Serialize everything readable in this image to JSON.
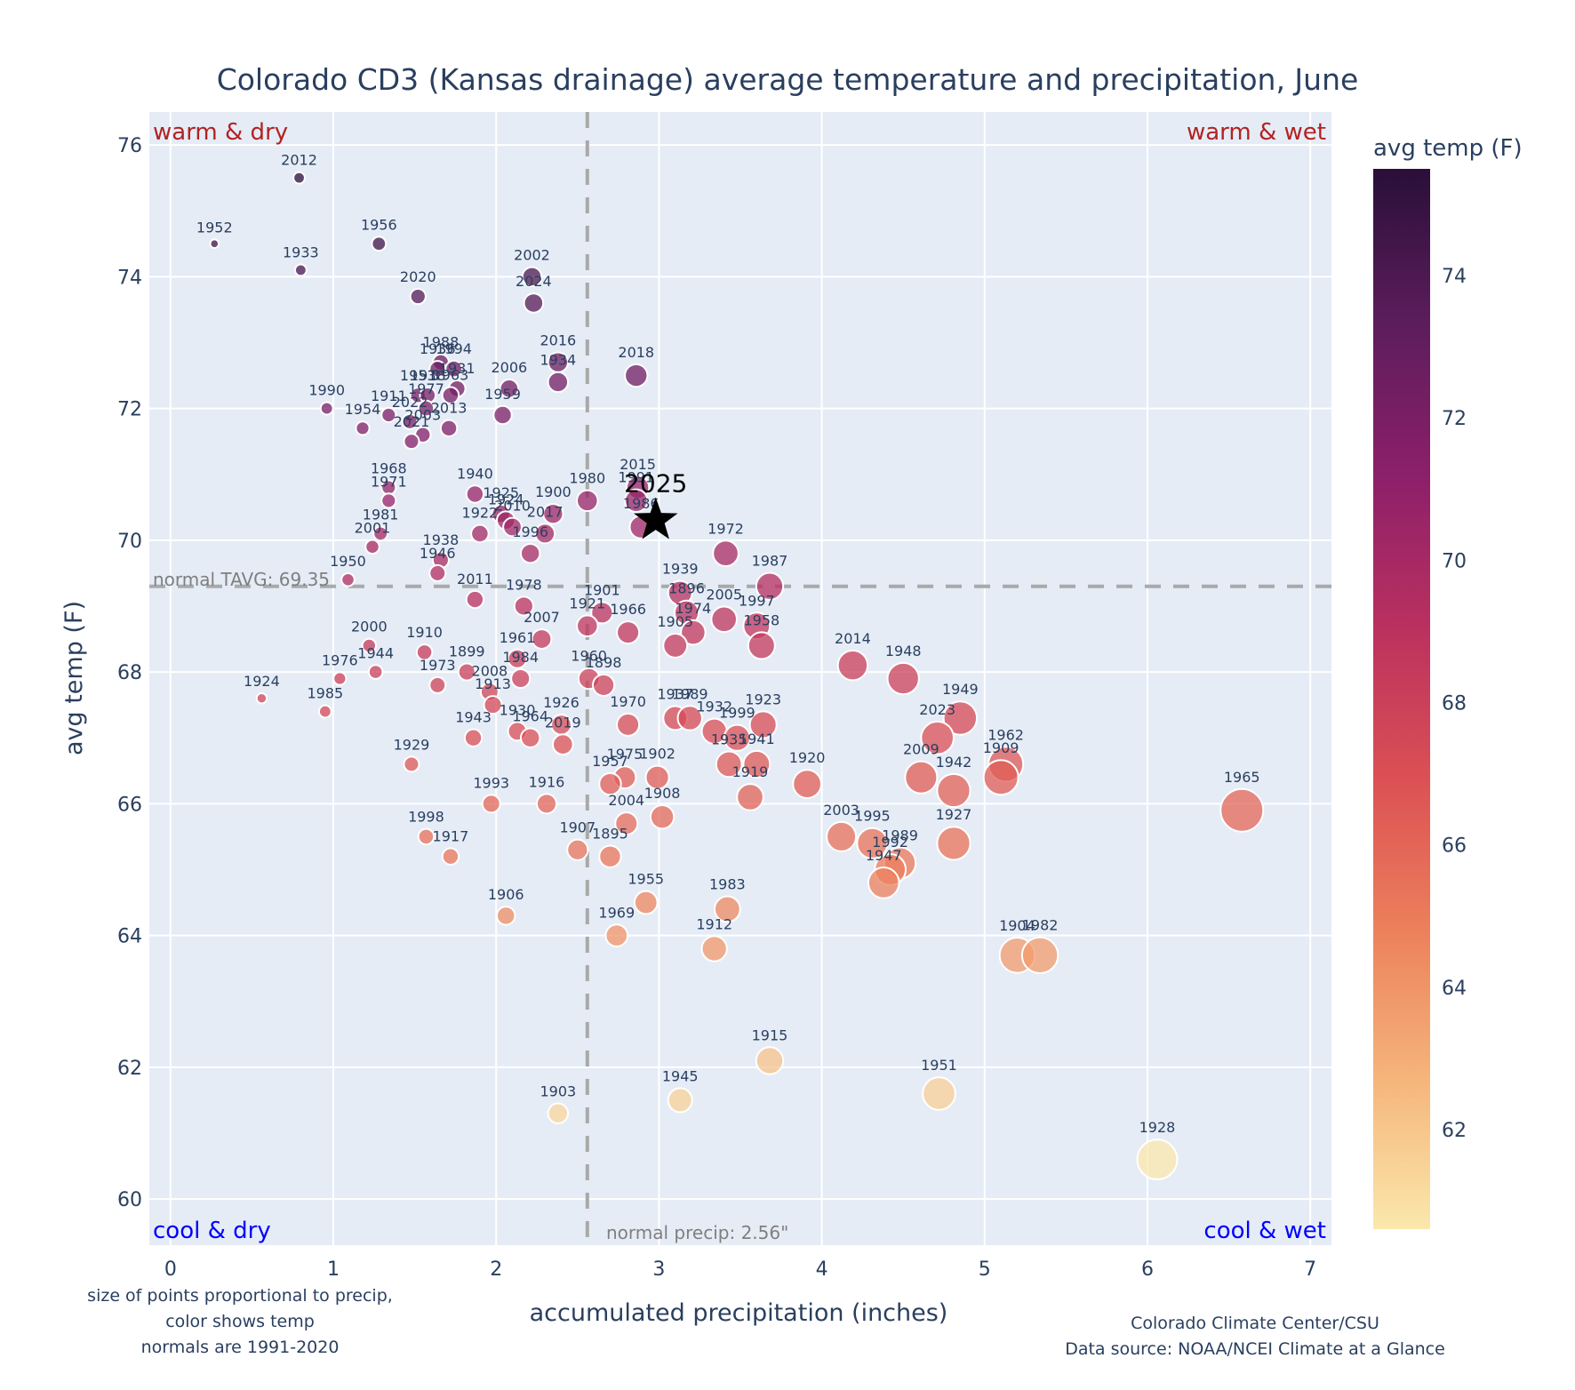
{
  "chart_data": {
    "type": "scatter",
    "title": "Colorado CD3 (Kansas drainage) average temperature and precipitation, June",
    "xlabel": "accumulated precipitation (inches)",
    "ylabel": "avg temp (F)",
    "xlim": [
      -0.13,
      7.13
    ],
    "ylim": [
      59.3,
      76.5
    ],
    "xticks": [
      0,
      1,
      2,
      3,
      4,
      5,
      6,
      7
    ],
    "yticks": [
      60,
      62,
      64,
      66,
      68,
      70,
      72,
      74,
      76
    ],
    "grid": true,
    "colorbar": {
      "title": "avg temp (F)",
      "range": [
        60.6,
        75.5
      ],
      "ticks": [
        62,
        64,
        66,
        68,
        70,
        72,
        74
      ],
      "colorscale": [
        "#fbe8ac",
        "#f5b47a",
        "#ec7f5b",
        "#db4f54",
        "#b9305f",
        "#8b1f6a",
        "#5b1d5c",
        "#2a0f38"
      ]
    },
    "reference_lines": {
      "normal_precip": 2.56,
      "normal_precip_label": "normal precip: 2.56\"",
      "normal_tavg": 69.3,
      "normal_tavg_label": "normal TAVG: 69.35"
    },
    "quadrant_labels": {
      "top_left": "warm & dry",
      "top_right": "warm & wet",
      "bottom_left": "cool & dry",
      "bottom_right": "cool & wet",
      "warm_color": "#b22222",
      "cool_color": "#0000ff"
    },
    "highlight": {
      "label": "2025",
      "x": 2.98,
      "y": 70.3,
      "marker": "star"
    },
    "size_note": [
      "size of points proportional to precip,",
      "color shows temp",
      "normals are 1991-2020"
    ],
    "credit": [
      "Colorado Climate Center/CSU",
      "Data source: NOAA/NCEI Climate at a Glance"
    ],
    "points": [
      {
        "year": "2012",
        "x": 0.79,
        "y": 75.5
      },
      {
        "year": "1952",
        "x": 0.27,
        "y": 74.5
      },
      {
        "year": "1956",
        "x": 1.28,
        "y": 74.5
      },
      {
        "year": "1933",
        "x": 0.8,
        "y": 74.1
      },
      {
        "year": "2002",
        "x": 2.22,
        "y": 74.0
      },
      {
        "year": "2024",
        "x": 2.23,
        "y": 73.6
      },
      {
        "year": "2020",
        "x": 1.52,
        "y": 73.7
      },
      {
        "year": "1988",
        "x": 1.66,
        "y": 72.7
      },
      {
        "year": "1994",
        "x": 1.74,
        "y": 72.6
      },
      {
        "year": "1936",
        "x": 1.64,
        "y": 72.6
      },
      {
        "year": "1931",
        "x": 1.76,
        "y": 72.3
      },
      {
        "year": "1953",
        "x": 1.52,
        "y": 72.2
      },
      {
        "year": "1918",
        "x": 1.58,
        "y": 72.2
      },
      {
        "year": "2016",
        "x": 2.38,
        "y": 72.7
      },
      {
        "year": "1934",
        "x": 2.38,
        "y": 72.4
      },
      {
        "year": "2006",
        "x": 2.08,
        "y": 72.3
      },
      {
        "year": "2018",
        "x": 2.86,
        "y": 72.5
      },
      {
        "year": "1990",
        "x": 0.96,
        "y": 72.0
      },
      {
        "year": "1911",
        "x": 1.34,
        "y": 71.9
      },
      {
        "year": "1977",
        "x": 1.57,
        "y": 72.0
      },
      {
        "year": "1963",
        "x": 1.72,
        "y": 72.2
      },
      {
        "year": "1959",
        "x": 2.04,
        "y": 71.9
      },
      {
        "year": "1954",
        "x": 1.18,
        "y": 71.7
      },
      {
        "year": "2022",
        "x": 1.47,
        "y": 71.8
      },
      {
        "year": "2003x",
        "x": 1.55,
        "y": 71.6
      },
      {
        "year": "2013",
        "x": 1.71,
        "y": 71.7
      },
      {
        "year": "2021",
        "x": 1.48,
        "y": 71.5
      },
      {
        "year": "1968",
        "x": 1.34,
        "y": 70.8
      },
      {
        "year": "1971",
        "x": 1.34,
        "y": 70.6
      },
      {
        "year": "1940",
        "x": 1.87,
        "y": 70.7
      },
      {
        "year": "1925",
        "x": 2.03,
        "y": 70.4
      },
      {
        "year": "1924x",
        "x": 2.06,
        "y": 70.3
      },
      {
        "year": "1900",
        "x": 2.35,
        "y": 70.4
      },
      {
        "year": "1980",
        "x": 2.56,
        "y": 70.6
      },
      {
        "year": "2015",
        "x": 2.87,
        "y": 70.8
      },
      {
        "year": "1991",
        "x": 2.86,
        "y": 70.6
      },
      {
        "year": "1986",
        "x": 2.89,
        "y": 70.2
      },
      {
        "year": "1981",
        "x": 1.29,
        "y": 70.1
      },
      {
        "year": "1922",
        "x": 1.9,
        "y": 70.1
      },
      {
        "year": "2010",
        "x": 2.1,
        "y": 70.2
      },
      {
        "year": "2017",
        "x": 2.3,
        "y": 70.1
      },
      {
        "year": "2001",
        "x": 1.24,
        "y": 69.9
      },
      {
        "year": "1938",
        "x": 1.66,
        "y": 69.7
      },
      {
        "year": "1996",
        "x": 2.21,
        "y": 69.8
      },
      {
        "year": "1972",
        "x": 3.41,
        "y": 69.8
      },
      {
        "year": "1987",
        "x": 3.68,
        "y": 69.3
      },
      {
        "year": "1950",
        "x": 1.09,
        "y": 69.4
      },
      {
        "year": "1946",
        "x": 1.64,
        "y": 69.5
      },
      {
        "year": "2011",
        "x": 1.87,
        "y": 69.1
      },
      {
        "year": "1939",
        "x": 3.13,
        "y": 69.2
      },
      {
        "year": "1896",
        "x": 3.17,
        "y": 68.9
      },
      {
        "year": "2005",
        "x": 3.4,
        "y": 68.8
      },
      {
        "year": "1997",
        "x": 3.6,
        "y": 68.7
      },
      {
        "year": "1974",
        "x": 3.21,
        "y": 68.6
      },
      {
        "year": "1905",
        "x": 3.1,
        "y": 68.4
      },
      {
        "year": "1958",
        "x": 3.63,
        "y": 68.4
      },
      {
        "year": "1978",
        "x": 2.17,
        "y": 69.0
      },
      {
        "year": "1901",
        "x": 2.65,
        "y": 68.9
      },
      {
        "year": "1921",
        "x": 2.56,
        "y": 68.7
      },
      {
        "year": "1966",
        "x": 2.81,
        "y": 68.6
      },
      {
        "year": "2007",
        "x": 2.28,
        "y": 68.5
      },
      {
        "year": "2000",
        "x": 1.22,
        "y": 68.4
      },
      {
        "year": "1910",
        "x": 1.56,
        "y": 68.3
      },
      {
        "year": "1961",
        "x": 2.13,
        "y": 68.2
      },
      {
        "year": "1944",
        "x": 1.26,
        "y": 68.0
      },
      {
        "year": "1899",
        "x": 1.82,
        "y": 68.0
      },
      {
        "year": "1960",
        "x": 2.57,
        "y": 67.9
      },
      {
        "year": "1898",
        "x": 2.66,
        "y": 67.8
      },
      {
        "year": "1976",
        "x": 1.04,
        "y": 67.9
      },
      {
        "year": "1984",
        "x": 2.15,
        "y": 67.9
      },
      {
        "year": "1973",
        "x": 1.64,
        "y": 67.8
      },
      {
        "year": "2008",
        "x": 1.96,
        "y": 67.7
      },
      {
        "year": "1913",
        "x": 1.98,
        "y": 67.5
      },
      {
        "year": "2014",
        "x": 4.19,
        "y": 68.1
      },
      {
        "year": "1948",
        "x": 4.5,
        "y": 67.9
      },
      {
        "year": "1924",
        "x": 0.56,
        "y": 67.6
      },
      {
        "year": "1985",
        "x": 0.95,
        "y": 67.4
      },
      {
        "year": "1949",
        "x": 4.85,
        "y": 67.3
      },
      {
        "year": "1937",
        "x": 3.1,
        "y": 67.3
      },
      {
        "year": "1989",
        "x": 3.19,
        "y": 67.3
      },
      {
        "year": "1970",
        "x": 2.81,
        "y": 67.2
      },
      {
        "year": "1932",
        "x": 3.34,
        "y": 67.1
      },
      {
        "year": "1923",
        "x": 3.64,
        "y": 67.2
      },
      {
        "year": "1999",
        "x": 3.48,
        "y": 67.0
      },
      {
        "year": "1926",
        "x": 2.4,
        "y": 67.2
      },
      {
        "year": "1930",
        "x": 2.13,
        "y": 67.1
      },
      {
        "year": "1964",
        "x": 2.21,
        "y": 67.0
      },
      {
        "year": "1943",
        "x": 1.86,
        "y": 67.0
      },
      {
        "year": "2019",
        "x": 2.41,
        "y": 66.9
      },
      {
        "year": "2023",
        "x": 4.71,
        "y": 67.0
      },
      {
        "year": "1962",
        "x": 5.13,
        "y": 66.6
      },
      {
        "year": "1935",
        "x": 3.43,
        "y": 66.6
      },
      {
        "year": "1941",
        "x": 3.6,
        "y": 66.6
      },
      {
        "year": "1929",
        "x": 1.48,
        "y": 66.6
      },
      {
        "year": "2009",
        "x": 4.61,
        "y": 66.4
      },
      {
        "year": "1909",
        "x": 5.1,
        "y": 66.4
      },
      {
        "year": "1942",
        "x": 4.81,
        "y": 66.2
      },
      {
        "year": "1920",
        "x": 3.91,
        "y": 66.3
      },
      {
        "year": "1919",
        "x": 3.56,
        "y": 66.1
      },
      {
        "year": "1975",
        "x": 2.79,
        "y": 66.4
      },
      {
        "year": "1902",
        "x": 2.99,
        "y": 66.4
      },
      {
        "year": "1957",
        "x": 2.7,
        "y": 66.3
      },
      {
        "year": "1908",
        "x": 3.02,
        "y": 65.8
      },
      {
        "year": "1993",
        "x": 1.97,
        "y": 66.0
      },
      {
        "year": "1916",
        "x": 2.31,
        "y": 66.0
      },
      {
        "year": "1965",
        "x": 6.58,
        "y": 65.9
      },
      {
        "year": "2003",
        "x": 4.12,
        "y": 65.5
      },
      {
        "year": "1995",
        "x": 4.31,
        "y": 65.4
      },
      {
        "year": "1927",
        "x": 4.81,
        "y": 65.4
      },
      {
        "year": "1989x",
        "x": 4.48,
        "y": 65.1
      },
      {
        "year": "1992",
        "x": 4.42,
        "y": 65.0
      },
      {
        "year": "1947",
        "x": 4.38,
        "y": 64.8
      },
      {
        "year": "2004",
        "x": 2.8,
        "y": 65.7
      },
      {
        "year": "1998",
        "x": 1.57,
        "y": 65.5
      },
      {
        "year": "1895",
        "x": 2.7,
        "y": 65.2
      },
      {
        "year": "1907",
        "x": 2.5,
        "y": 65.3
      },
      {
        "year": "1917",
        "x": 1.72,
        "y": 65.2
      },
      {
        "year": "1955",
        "x": 2.92,
        "y": 64.5
      },
      {
        "year": "1983",
        "x": 3.42,
        "y": 64.4
      },
      {
        "year": "1906",
        "x": 2.06,
        "y": 64.3
      },
      {
        "year": "1969",
        "x": 2.74,
        "y": 64.0
      },
      {
        "year": "1912",
        "x": 3.34,
        "y": 63.8
      },
      {
        "year": "1904",
        "x": 5.2,
        "y": 63.7
      },
      {
        "year": "1982",
        "x": 5.34,
        "y": 63.7
      },
      {
        "year": "1915",
        "x": 3.68,
        "y": 62.1
      },
      {
        "year": "1951",
        "x": 4.72,
        "y": 61.6
      },
      {
        "year": "1945",
        "x": 3.13,
        "y": 61.5
      },
      {
        "year": "1903",
        "x": 2.38,
        "y": 61.3
      },
      {
        "year": "1928",
        "x": 6.06,
        "y": 60.6
      }
    ]
  }
}
